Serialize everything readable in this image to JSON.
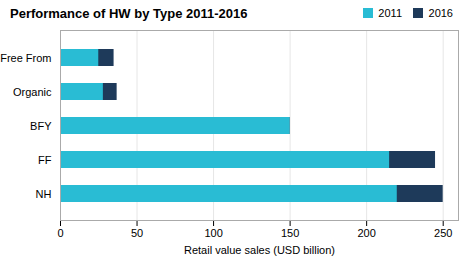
{
  "chart_data": {
    "type": "bar",
    "orientation": "horizontal",
    "title": "Performance of HW by Type 2011-2016",
    "xlabel": "Retail value sales (USD billion)",
    "categories": [
      "NH",
      "FF",
      "BFY",
      "Organic",
      "Free From"
    ],
    "series": [
      {
        "name": "2011",
        "color": "#29bcd4",
        "values": [
          220,
          215,
          150,
          28,
          25
        ]
      },
      {
        "name": "2016",
        "color": "#1e3a5a",
        "values": [
          250,
          245,
          150,
          37,
          35
        ]
      }
    ],
    "xlim": [
      0,
      260
    ],
    "xticks": [
      0,
      50,
      100,
      150,
      200,
      250
    ],
    "grid": true,
    "legend": "upper right"
  }
}
